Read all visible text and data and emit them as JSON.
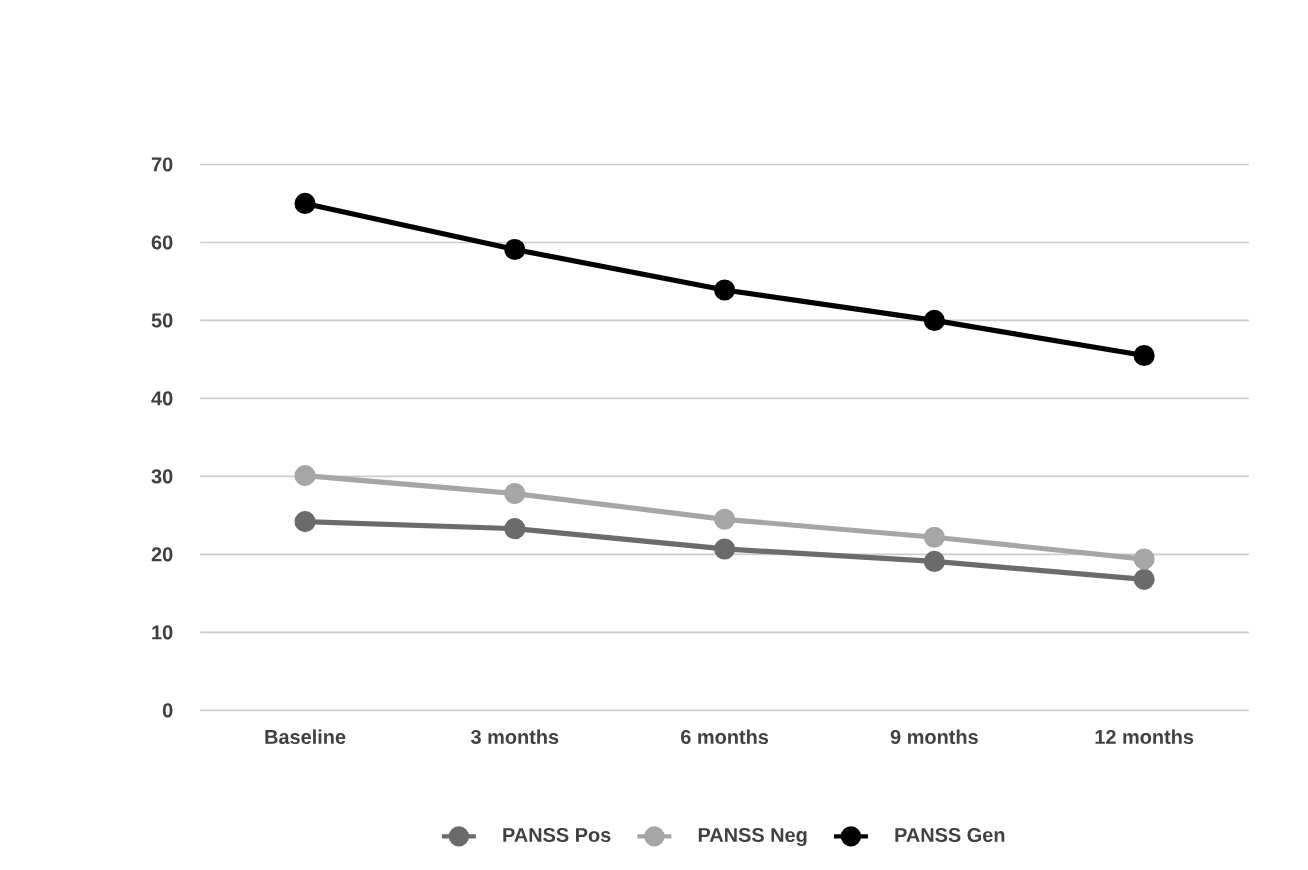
{
  "chart_data": {
    "type": "line",
    "categories": [
      "Baseline",
      "3 months",
      "6 months",
      "9 months",
      "12 months"
    ],
    "series": [
      {
        "name": "PANSS Pos",
        "color": "#6b6b6b",
        "values": [
          24.2,
          23.3,
          20.7,
          19.1,
          16.8
        ]
      },
      {
        "name": "PANSS Neg",
        "color": "#a6a6a6",
        "values": [
          30.1,
          27.8,
          24.5,
          22.2,
          19.4
        ]
      },
      {
        "name": "PANSS Gen",
        "color": "#000000",
        "values": [
          65,
          59.1,
          53.9,
          50,
          45.5
        ]
      }
    ],
    "ylim": [
      0,
      70
    ],
    "yticks": [
      0,
      10,
      20,
      30,
      40,
      50,
      60,
      70
    ],
    "grid": "y",
    "legend": "bottom",
    "marker": "circle",
    "line_style": "solid"
  }
}
